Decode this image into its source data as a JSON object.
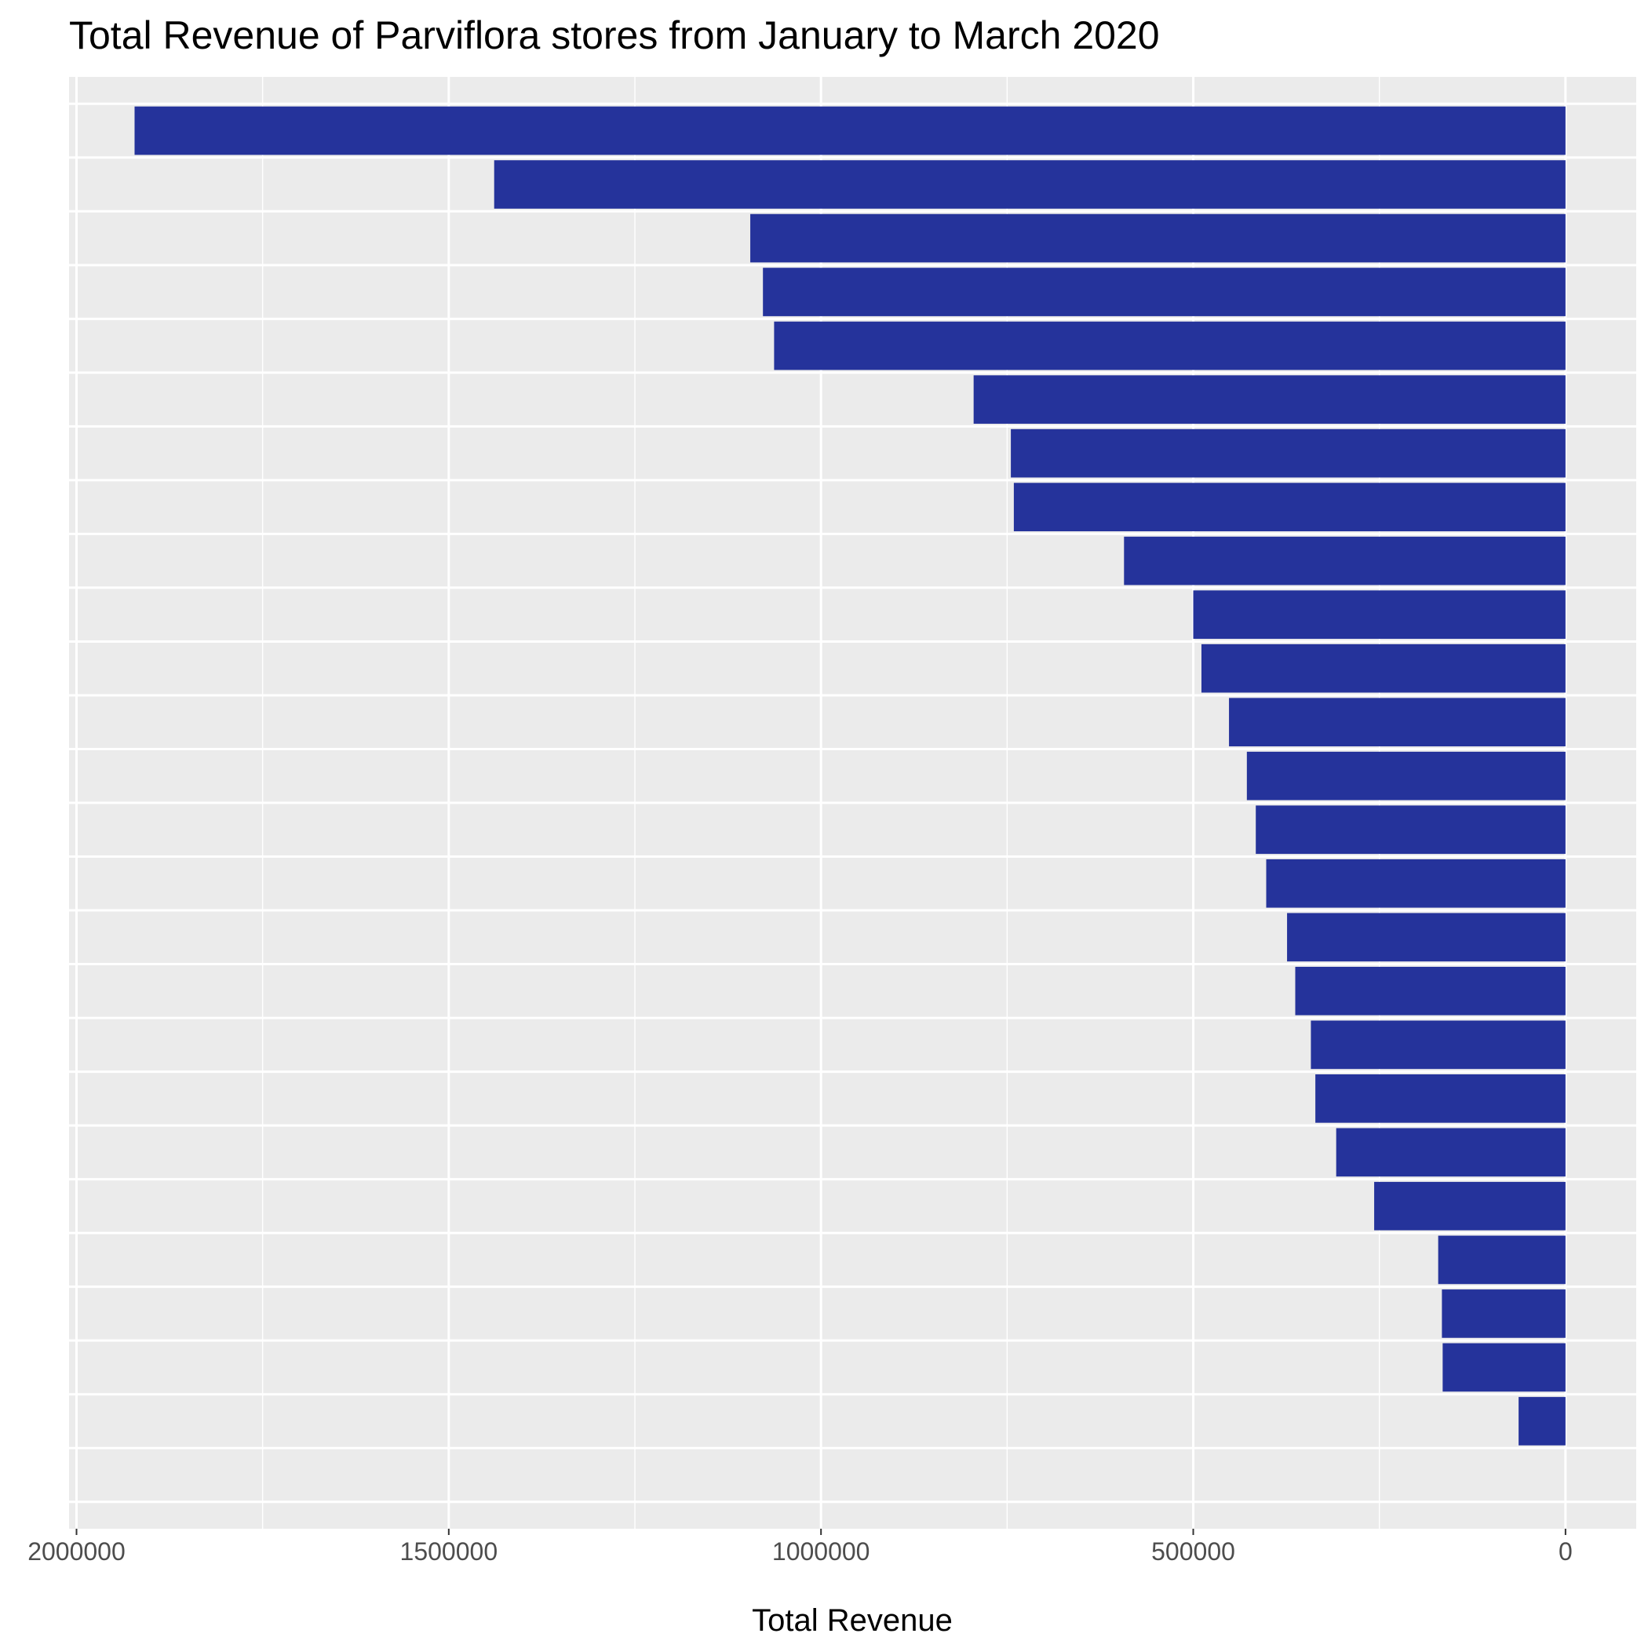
{
  "chart_data": {
    "type": "bar",
    "orientation": "horizontal",
    "x_axis_reversed": true,
    "title": "Total Revenue of Parviflora stores from January to March 2020",
    "xlabel": "Total Revenue",
    "ylabel": "",
    "xlim": [
      2010000,
      -95000
    ],
    "x_ticks": [
      2000000,
      1500000,
      1000000,
      500000,
      0
    ],
    "x_tick_labels": [
      "2000000",
      "1500000",
      "1000000",
      "500000",
      "0"
    ],
    "y_slots": 27,
    "values": [
      1922000,
      1439000,
      1095000,
      1078000,
      1063000,
      795000,
      745000,
      741000,
      593000,
      500000,
      489000,
      452000,
      428000,
      416000,
      402000,
      374000,
      363000,
      342000,
      336000,
      308000,
      257000,
      171000,
      166000,
      165000,
      63000
    ],
    "grid": true,
    "legend": "none",
    "colors": {
      "bar": "#25339b",
      "panel": "#ebebeb",
      "grid": "#ffffff",
      "tick_text": "#4d4d4d",
      "text": "#000000"
    }
  }
}
